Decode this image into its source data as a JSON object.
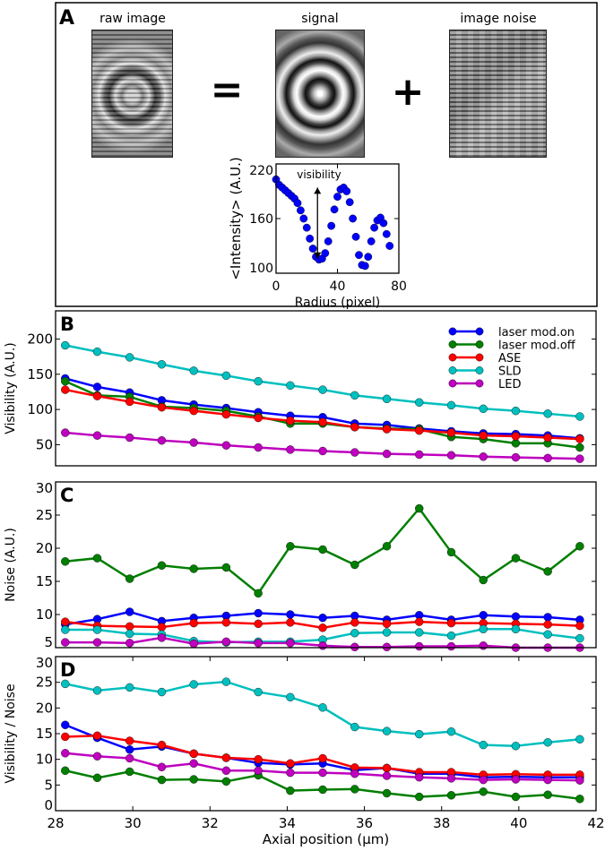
{
  "panel_a": {
    "letter": "A",
    "titles": {
      "raw": "raw image",
      "signal": "signal",
      "noise": "image noise"
    },
    "equals": "=",
    "plus": "+"
  },
  "chart_data": [
    {
      "id": "inset",
      "type": "scatter",
      "xlabel": "Radius (pixel)",
      "ylabel": "<Intensity> (A.U.)",
      "xlim": [
        0,
        80
      ],
      "ylim": [
        100,
        220
      ],
      "xticks": [
        0,
        40,
        80
      ],
      "yticks": [
        100,
        160,
        220
      ],
      "annotation": "visibility",
      "color": "#0000ff",
      "x": [
        0,
        2,
        4,
        6,
        8,
        10,
        12,
        14,
        16,
        18,
        20,
        22,
        24,
        26,
        28,
        30,
        32,
        34,
        36,
        38,
        40,
        42,
        44,
        46,
        48,
        50,
        52,
        54,
        56,
        58,
        60,
        62,
        64,
        66,
        68,
        70,
        72,
        74
      ],
      "y": [
        203,
        197,
        194,
        191,
        188,
        185,
        182,
        177,
        169,
        160,
        150,
        138,
        127,
        118,
        115,
        116,
        122,
        135,
        152,
        170,
        184,
        192,
        194,
        190,
        178,
        160,
        140,
        120,
        109,
        108,
        118,
        135,
        150,
        158,
        161,
        155,
        143,
        130
      ]
    },
    {
      "id": "B",
      "letter": "B",
      "type": "line",
      "ylabel": "Visibility (A.U.)",
      "ylim": [
        20,
        240
      ],
      "xlim": [
        28,
        42
      ],
      "yticks": [
        50,
        100,
        150,
        200
      ],
      "legend": "top-right",
      "x": [
        28.25,
        29.08,
        29.92,
        30.75,
        31.58,
        32.42,
        33.25,
        34.08,
        34.92,
        35.75,
        36.58,
        37.42,
        38.25,
        39.08,
        39.92,
        40.75,
        41.58
      ],
      "series": [
        {
          "name": "laser mod.on",
          "color": "#0000ff",
          "values": [
            144,
            132,
            124,
            113,
            107,
            102,
            96,
            91,
            89,
            80,
            78,
            73,
            69,
            66,
            65,
            63,
            59
          ]
        },
        {
          "name": "laser mod.off",
          "color": "#007f00",
          "values": [
            140,
            120,
            118,
            104,
            102,
            98,
            90,
            80,
            80,
            75,
            73,
            72,
            61,
            58,
            52,
            52,
            46
          ]
        },
        {
          "name": "ASE",
          "color": "#ff0000",
          "values": [
            128,
            119,
            111,
            103,
            98,
            93,
            88,
            84,
            82,
            75,
            72,
            70,
            67,
            63,
            62,
            60,
            58
          ]
        },
        {
          "name": "SLD",
          "color": "#00bfbf",
          "values": [
            191,
            182,
            174,
            164,
            155,
            148,
            140,
            134,
            128,
            120,
            115,
            110,
            106,
            101,
            98,
            94,
            90
          ]
        },
        {
          "name": "LED",
          "color": "#bf00bf",
          "values": [
            67,
            63,
            60,
            56,
            53,
            49,
            46,
            43,
            41,
            39,
            37,
            36,
            35,
            33,
            32,
            31,
            30
          ]
        }
      ]
    },
    {
      "id": "C",
      "letter": "C",
      "type": "line",
      "ylabel": "Noise (A.U.)",
      "ylim": [
        5,
        30
      ],
      "xlim": [
        28,
        42
      ],
      "yticks": [
        5,
        10,
        15,
        20,
        25,
        30
      ],
      "x": [
        28.25,
        29.08,
        29.92,
        30.75,
        31.58,
        32.42,
        33.25,
        34.08,
        34.92,
        35.75,
        36.58,
        37.42,
        38.25,
        39.08,
        39.92,
        40.75,
        41.58
      ],
      "series": [
        {
          "name": "laser mod.on",
          "color": "#0000ff",
          "values": [
            8.5,
            9.3,
            10.4,
            9.0,
            9.5,
            9.8,
            10.2,
            10.0,
            9.5,
            9.8,
            9.2,
            9.9,
            9.2,
            9.9,
            9.7,
            9.6,
            9.2
          ]
        },
        {
          "name": "laser mod.off",
          "color": "#007f00",
          "values": [
            18.0,
            18.5,
            15.4,
            17.4,
            16.9,
            17.1,
            13.2,
            20.3,
            19.8,
            17.5,
            20.3,
            26.0,
            19.4,
            15.2,
            18.5,
            16.5,
            20.3
          ]
        },
        {
          "name": "ASE",
          "color": "#ff0000",
          "values": [
            8.9,
            8.3,
            8.2,
            8.1,
            8.7,
            8.8,
            8.6,
            8.8,
            8.0,
            8.8,
            8.6,
            8.9,
            8.7,
            8.7,
            8.6,
            8.5,
            8.3
          ]
        },
        {
          "name": "SLD",
          "color": "#00bfbf",
          "values": [
            7.7,
            7.7,
            7.1,
            7.0,
            6.0,
            5.8,
            5.9,
            5.9,
            6.2,
            7.2,
            7.3,
            7.3,
            6.8,
            7.8,
            7.8,
            7.0,
            6.4
          ]
        },
        {
          "name": "LED",
          "color": "#bf00bf",
          "values": [
            5.8,
            5.8,
            5.7,
            6.5,
            5.6,
            5.9,
            5.7,
            5.7,
            5.3,
            5.1,
            5.1,
            5.2,
            5.2,
            5.3,
            5.0,
            5.0,
            5.0
          ]
        }
      ]
    },
    {
      "id": "D",
      "letter": "D",
      "type": "line",
      "ylabel": "Visibility / Noise",
      "xlabel": "Axial position (μm)",
      "ylim": [
        0,
        30
      ],
      "xlim": [
        28,
        42
      ],
      "yticks": [
        0,
        5,
        10,
        15,
        20,
        25,
        30
      ],
      "xticks": [
        28,
        30,
        32,
        34,
        36,
        38,
        40,
        42
      ],
      "x": [
        28.25,
        29.08,
        29.92,
        30.75,
        31.58,
        32.42,
        33.25,
        34.08,
        34.92,
        35.75,
        36.58,
        37.42,
        38.25,
        39.08,
        39.92,
        40.75,
        41.58
      ],
      "series": [
        {
          "name": "laser mod.on",
          "color": "#0000ff",
          "values": [
            16.7,
            14.2,
            11.9,
            12.5,
            11.1,
            10.3,
            9.3,
            9.0,
            9.2,
            7.9,
            8.3,
            7.2,
            7.2,
            6.5,
            6.6,
            6.5,
            6.5
          ]
        },
        {
          "name": "laser mod.off",
          "color": "#007f00",
          "values": [
            7.8,
            6.4,
            7.6,
            6.0,
            6.1,
            5.7,
            6.9,
            3.9,
            4.1,
            4.2,
            3.4,
            2.7,
            3.0,
            3.7,
            2.7,
            3.1,
            2.3
          ]
        },
        {
          "name": "ASE",
          "color": "#ff0000",
          "values": [
            14.4,
            14.6,
            13.6,
            12.8,
            11.1,
            10.3,
            10.0,
            9.2,
            10.2,
            8.4,
            8.3,
            7.5,
            7.5,
            7.0,
            7.1,
            7.0,
            7.0
          ]
        },
        {
          "name": "SLD",
          "color": "#00bfbf",
          "values": [
            24.7,
            23.4,
            24.0,
            23.1,
            24.6,
            25.1,
            23.1,
            22.1,
            20.1,
            16.3,
            15.5,
            14.9,
            15.4,
            12.8,
            12.6,
            13.3,
            13.9
          ]
        },
        {
          "name": "LED",
          "color": "#bf00bf",
          "values": [
            11.2,
            10.6,
            10.2,
            8.5,
            9.2,
            7.8,
            7.8,
            7.4,
            7.4,
            7.2,
            6.8,
            6.5,
            6.3,
            6.0,
            6.1,
            6.0,
            5.9
          ]
        }
      ]
    }
  ]
}
